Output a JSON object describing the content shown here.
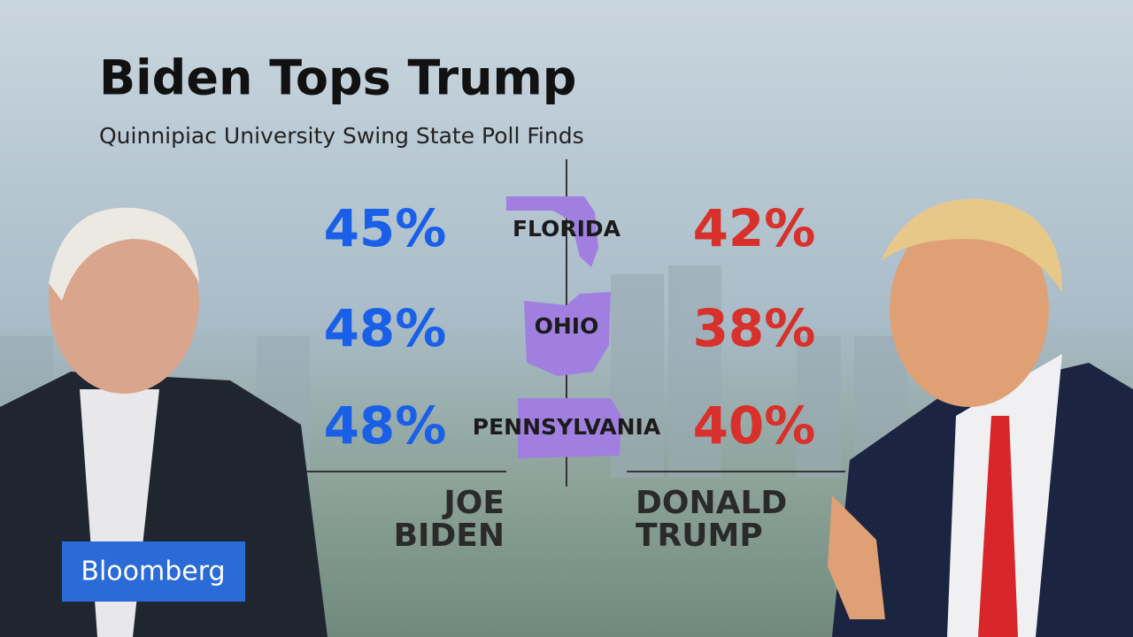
{
  "header": {
    "title": "Biden Tops Trump",
    "subtitle": "Quinnipiac University Swing State Poll Finds"
  },
  "rows": [
    {
      "state": "FLORIDA",
      "biden": "45%",
      "trump": "42%"
    },
    {
      "state": "OHIO",
      "biden": "48%",
      "trump": "38%"
    },
    {
      "state": "PENNSYLVANIA",
      "biden": "48%",
      "trump": "40%"
    }
  ],
  "candidates": {
    "left": [
      "JOE",
      "BIDEN"
    ],
    "right": [
      "DONALD",
      "TRUMP"
    ]
  },
  "logo": "Bloomberg"
}
